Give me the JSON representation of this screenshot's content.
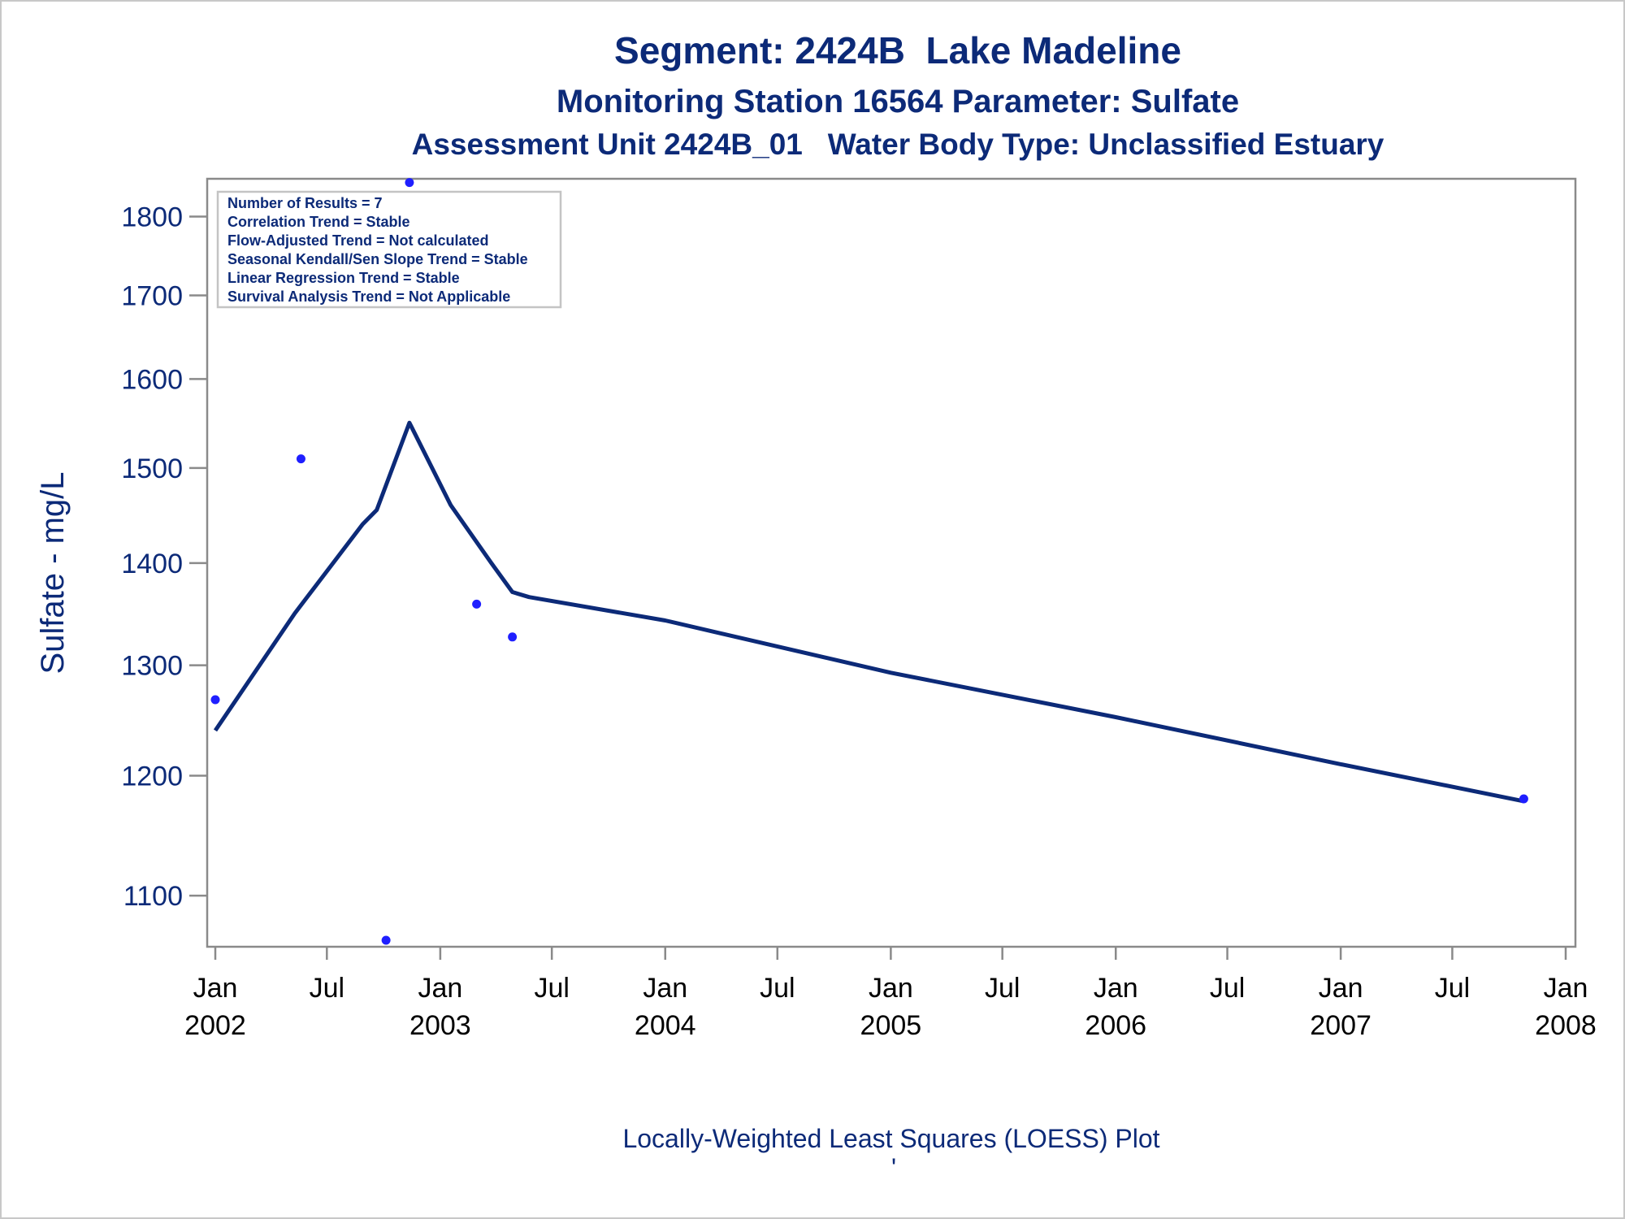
{
  "chart_data": {
    "type": "scatter",
    "title": "Segment: 2424B  Lake Madeline",
    "subtitle": "Monitoring Station 16564 Parameter: Sulfate",
    "subtitle2": "Assessment Unit 2424B_01   Water Body Type: Unclassified Estuary",
    "ylabel": "Sulfate - mg/L",
    "xlabel": "",
    "footnote": "Locally-Weighted Least Squares (LOESS) Plot",
    "footnote_mark": "'",
    "y_scale": "log",
    "ylim": [
      1060,
      1850
    ],
    "xlim": [
      "2002-01-01",
      "2008-01-01"
    ],
    "y_ticks": [
      1100,
      1200,
      1300,
      1400,
      1500,
      1600,
      1700,
      1800
    ],
    "x_ticks": [
      {
        "date": "2002-01-01",
        "month": "Jan",
        "year": "2002"
      },
      {
        "date": "2002-07-01",
        "month": "Jul",
        "year": ""
      },
      {
        "date": "2003-01-01",
        "month": "Jan",
        "year": "2003"
      },
      {
        "date": "2003-07-01",
        "month": "Jul",
        "year": ""
      },
      {
        "date": "2004-01-01",
        "month": "Jan",
        "year": "2004"
      },
      {
        "date": "2004-07-01",
        "month": "Jul",
        "year": ""
      },
      {
        "date": "2005-01-01",
        "month": "Jan",
        "year": "2005"
      },
      {
        "date": "2005-07-01",
        "month": "Jul",
        "year": ""
      },
      {
        "date": "2006-01-01",
        "month": "Jan",
        "year": "2006"
      },
      {
        "date": "2006-07-01",
        "month": "Jul",
        "year": ""
      },
      {
        "date": "2007-01-01",
        "month": "Jan",
        "year": "2007"
      },
      {
        "date": "2007-07-01",
        "month": "Jul",
        "year": ""
      },
      {
        "date": "2008-01-01",
        "month": "Jan",
        "year": "2008"
      }
    ],
    "grid": false,
    "stats": [
      "Number of Results = 7",
      "Correlation Trend = Stable",
      "Flow-Adjusted Trend = Not calculated",
      "Seasonal Kendall/Sen Slope Trend = Stable",
      "Linear Regression Trend = Stable",
      "Survival Analysis Trend = Not Applicable"
    ],
    "stats_placement": "top-left",
    "series": [
      {
        "kind": "points",
        "color": "#1f1fff",
        "points": [
          {
            "x": "2002-01-01",
            "y": 1268
          },
          {
            "x": "2002-05-20",
            "y": 1510
          },
          {
            "x": "2002-10-05",
            "y": 1065
          },
          {
            "x": "2002-11-12",
            "y": 1845
          },
          {
            "x": "2003-03-01",
            "y": 1359
          },
          {
            "x": "2003-04-28",
            "y": 1327
          },
          {
            "x": "2007-10-25",
            "y": 1180
          }
        ]
      },
      {
        "kind": "loess-line",
        "color": "#0c2a78",
        "points": [
          {
            "x": "2002-01-01",
            "y": 1240
          },
          {
            "x": "2002-05-10",
            "y": 1350
          },
          {
            "x": "2002-08-28",
            "y": 1440
          },
          {
            "x": "2002-09-20",
            "y": 1455
          },
          {
            "x": "2002-11-12",
            "y": 1550
          },
          {
            "x": "2003-01-18",
            "y": 1460
          },
          {
            "x": "2003-03-25",
            "y": 1400
          },
          {
            "x": "2003-04-28",
            "y": 1371
          },
          {
            "x": "2003-05-25",
            "y": 1366
          },
          {
            "x": "2004-01-01",
            "y": 1343
          },
          {
            "x": "2005-01-01",
            "y": 1293
          },
          {
            "x": "2006-01-01",
            "y": 1252
          },
          {
            "x": "2007-01-01",
            "y": 1210
          },
          {
            "x": "2007-10-25",
            "y": 1178
          }
        ]
      }
    ]
  }
}
